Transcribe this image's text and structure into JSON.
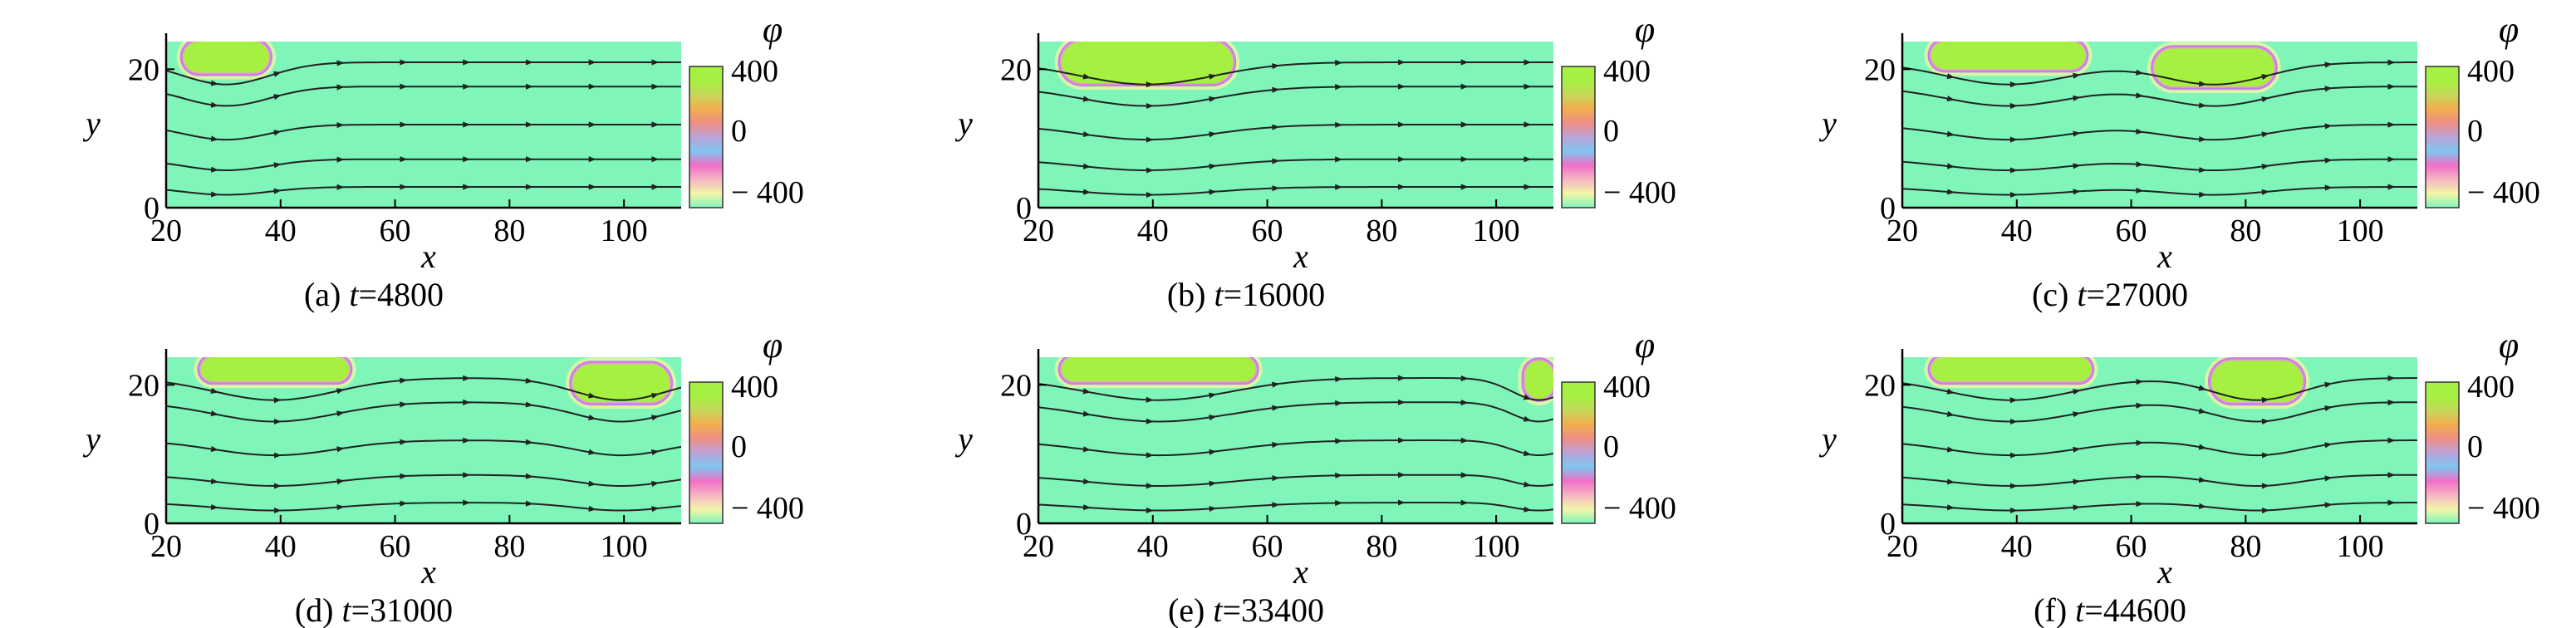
{
  "chart_data": [
    {
      "type": "heatmap",
      "panel": "(a)",
      "caption_prefix": "(a) ",
      "caption_var": "t",
      "caption_value": "=4800",
      "xlabel": "x",
      "ylabel": "y",
      "x_ticks": [
        "20",
        "40",
        "60",
        "80",
        "100"
      ],
      "y_ticks": [
        "0",
        "20"
      ],
      "xlim": [
        20,
        110
      ],
      "ylim": [
        0,
        24
      ],
      "colorbar": {
        "title": "φ",
        "tick_labels": [
          "400",
          "0",
          "− 400"
        ],
        "range": [
          -400,
          400
        ]
      },
      "droplets": [
        {
          "x": [
            23,
            38
          ],
          "y": [
            19.5,
            24
          ]
        }
      ]
    },
    {
      "type": "heatmap",
      "panel": "(b)",
      "caption_prefix": "(b) ",
      "caption_var": "t",
      "caption_value": "=16000",
      "xlabel": "x",
      "ylabel": "y",
      "x_ticks": [
        "20",
        "40",
        "60",
        "80",
        "100"
      ],
      "y_ticks": [
        "0",
        "20"
      ],
      "xlim": [
        20,
        110
      ],
      "ylim": [
        0,
        24
      ],
      "colorbar": {
        "title": "φ",
        "tick_labels": [
          "400",
          "0",
          "− 400"
        ],
        "range": [
          -400,
          400
        ]
      },
      "droplets": [
        {
          "x": [
            24,
            54
          ],
          "y": [
            18,
            24
          ]
        }
      ]
    },
    {
      "type": "heatmap",
      "panel": "(c)",
      "caption_prefix": "(c) ",
      "caption_var": "t",
      "caption_value": "=27000",
      "xlabel": "x",
      "ylabel": "y",
      "x_ticks": [
        "20",
        "40",
        "60",
        "80",
        "100"
      ],
      "y_ticks": [
        "0",
        "20"
      ],
      "xlim": [
        20,
        110
      ],
      "ylim": [
        0,
        24
      ],
      "colorbar": {
        "title": "φ",
        "tick_labels": [
          "400",
          "0",
          "− 400"
        ],
        "range": [
          -400,
          400
        ]
      },
      "droplets": [
        {
          "x": [
            25,
            52
          ],
          "y": [
            20,
            24
          ]
        },
        {
          "x": [
            64,
            85
          ],
          "y": [
            17.5,
            23
          ]
        }
      ]
    },
    {
      "type": "heatmap",
      "panel": "(d)",
      "caption_prefix": "(d) ",
      "caption_var": "t",
      "caption_value": "=31000",
      "xlabel": "x",
      "ylabel": "y",
      "x_ticks": [
        "20",
        "40",
        "60",
        "80",
        "100"
      ],
      "y_ticks": [
        "0",
        "20"
      ],
      "xlim": [
        20,
        110
      ],
      "ylim": [
        0,
        24
      ],
      "colorbar": {
        "title": "φ",
        "tick_labels": [
          "400",
          "0",
          "− 400"
        ],
        "range": [
          -400,
          400
        ]
      },
      "droplets": [
        {
          "x": [
            26,
            52
          ],
          "y": [
            20.5,
            24
          ]
        },
        {
          "x": [
            91,
            108
          ],
          "y": [
            17.5,
            23
          ]
        }
      ]
    },
    {
      "type": "heatmap",
      "panel": "(e)",
      "caption_prefix": "(e) ",
      "caption_var": "t",
      "caption_value": "=33400",
      "xlabel": "x",
      "ylabel": "y",
      "x_ticks": [
        "20",
        "40",
        "60",
        "80",
        "100"
      ],
      "y_ticks": [
        "0",
        "20"
      ],
      "xlim": [
        20,
        110
      ],
      "ylim": [
        0,
        24
      ],
      "colorbar": {
        "title": "φ",
        "tick_labels": [
          "400",
          "0",
          "− 400"
        ],
        "range": [
          -400,
          400
        ]
      },
      "droplets": [
        {
          "x": [
            24,
            58
          ],
          "y": [
            20.5,
            24
          ]
        },
        {
          "x": [
            105,
            110
          ],
          "y": [
            18,
            23.5
          ]
        }
      ]
    },
    {
      "type": "heatmap",
      "panel": "(f)",
      "caption_prefix": "(f) ",
      "caption_var": "t",
      "caption_value": "=44600",
      "xlabel": "x",
      "ylabel": "y",
      "x_ticks": [
        "20",
        "40",
        "60",
        "80",
        "100"
      ],
      "y_ticks": [
        "0",
        "20"
      ],
      "xlim": [
        20,
        110
      ],
      "ylim": [
        0,
        24
      ],
      "colorbar": {
        "title": "φ",
        "tick_labels": [
          "400",
          "0",
          "− 400"
        ],
        "range": [
          -400,
          400
        ]
      },
      "droplets": [
        {
          "x": [
            25,
            53
          ],
          "y": [
            20.5,
            24
          ]
        },
        {
          "x": [
            74,
            90
          ],
          "y": [
            17.5,
            23.5
          ]
        }
      ]
    }
  ],
  "colors": {
    "fluid": "#7ff5b9",
    "droplet": "#a5f040",
    "rim": [
      "#f3f7a0",
      "#f095d8",
      "#c97fe6"
    ],
    "colorbar_stops": [
      "#a5f040",
      "#a5f040",
      "#c6d85a",
      "#f2ae4e",
      "#ee8e86",
      "#bba3d8",
      "#7fc6f0",
      "#f06fc6",
      "#f6b5c4",
      "#f3f5a8",
      "#7ff5b9"
    ],
    "streamline": "#222222",
    "axis": "#000000"
  }
}
